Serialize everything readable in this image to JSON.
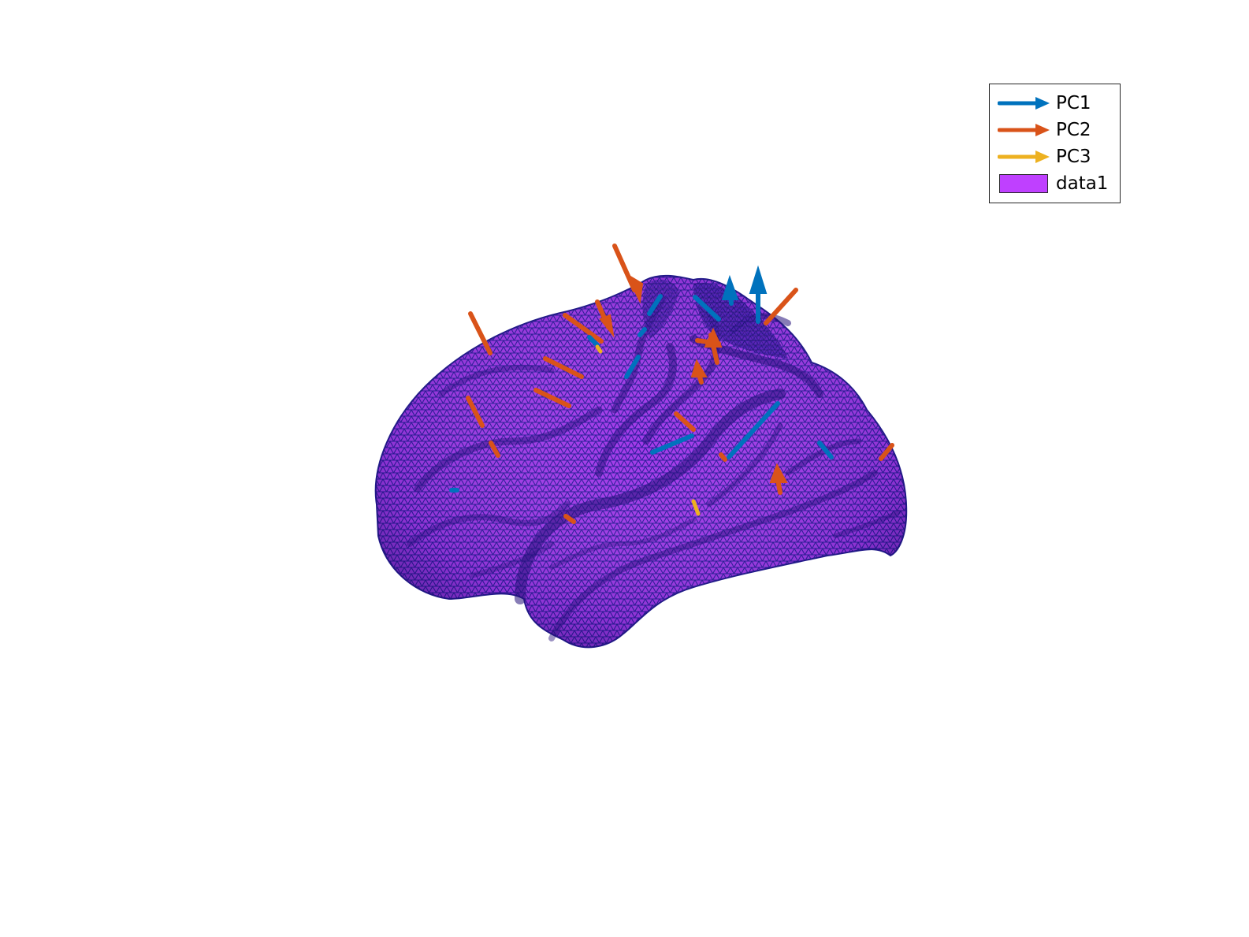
{
  "legend": {
    "entries": [
      {
        "label": "PC1",
        "kind": "arrow",
        "color": "#0072BD"
      },
      {
        "label": "PC2",
        "kind": "arrow",
        "color": "#D95319"
      },
      {
        "label": "PC3",
        "kind": "arrow",
        "color": "#EDB120"
      },
      {
        "label": "data1",
        "kind": "patch",
        "color": "#BF40FF",
        "edge_color": "#1a1a8c"
      }
    ]
  },
  "surface": {
    "face_color": "#9b35e6",
    "edge_color": "#1e1890",
    "shadow_color": "#2a1670"
  }
}
